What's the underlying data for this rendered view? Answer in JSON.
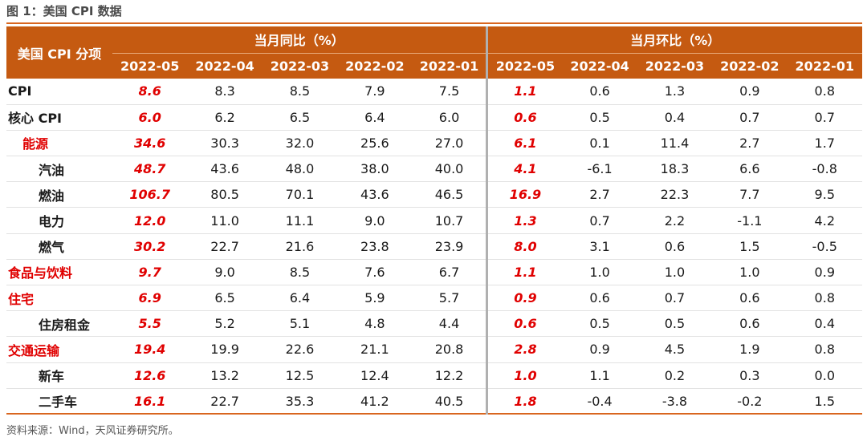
{
  "title": "图 1：美国 CPI 数据",
  "source": "资料来源：Wind，天风证券研究所。",
  "header": {
    "row_label": "美国 CPI 分项",
    "yoy_group": "当月同比（%）",
    "mom_group": "当月环比（%）",
    "months": [
      "2022-05",
      "2022-04",
      "2022-03",
      "2022-02",
      "2022-01"
    ]
  },
  "rows": [
    {
      "label": "CPI",
      "level": 0,
      "red_label": false,
      "yoy": [
        "8.6",
        "8.3",
        "8.5",
        "7.9",
        "7.5"
      ],
      "mom": [
        "1.1",
        "0.6",
        "1.3",
        "0.9",
        "0.8"
      ]
    },
    {
      "label": "核心 CPI",
      "level": 0,
      "red_label": false,
      "yoy": [
        "6.0",
        "6.2",
        "6.5",
        "6.4",
        "6.0"
      ],
      "mom": [
        "0.6",
        "0.5",
        "0.4",
        "0.7",
        "0.7"
      ]
    },
    {
      "label": "能源",
      "level": 1,
      "red_label": true,
      "yoy": [
        "34.6",
        "30.3",
        "32.0",
        "25.6",
        "27.0"
      ],
      "mom": [
        "6.1",
        "0.1",
        "11.4",
        "2.7",
        "1.7"
      ]
    },
    {
      "label": "汽油",
      "level": 2,
      "red_label": false,
      "yoy": [
        "48.7",
        "43.6",
        "48.0",
        "38.0",
        "40.0"
      ],
      "mom": [
        "4.1",
        "-6.1",
        "18.3",
        "6.6",
        "-0.8"
      ]
    },
    {
      "label": "燃油",
      "level": 2,
      "red_label": false,
      "yoy": [
        "106.7",
        "80.5",
        "70.1",
        "43.6",
        "46.5"
      ],
      "mom": [
        "16.9",
        "2.7",
        "22.3",
        "7.7",
        "9.5"
      ]
    },
    {
      "label": "电力",
      "level": 2,
      "red_label": false,
      "yoy": [
        "12.0",
        "11.0",
        "11.1",
        "9.0",
        "10.7"
      ],
      "mom": [
        "1.3",
        "0.7",
        "2.2",
        "-1.1",
        "4.2"
      ]
    },
    {
      "label": "燃气",
      "level": 2,
      "red_label": false,
      "yoy": [
        "30.2",
        "22.7",
        "21.6",
        "23.8",
        "23.9"
      ],
      "mom": [
        "8.0",
        "3.1",
        "0.6",
        "1.5",
        "-0.5"
      ]
    },
    {
      "label": "食品与饮料",
      "level": 0,
      "red_label": true,
      "yoy": [
        "9.7",
        "9.0",
        "8.5",
        "7.6",
        "6.7"
      ],
      "mom": [
        "1.1",
        "1.0",
        "1.0",
        "1.0",
        "0.9"
      ]
    },
    {
      "label": "住宅",
      "level": 0,
      "red_label": true,
      "yoy": [
        "6.9",
        "6.5",
        "6.4",
        "5.9",
        "5.7"
      ],
      "mom": [
        "0.9",
        "0.6",
        "0.7",
        "0.6",
        "0.8"
      ]
    },
    {
      "label": "住房租金",
      "level": 2,
      "red_label": false,
      "yoy": [
        "5.5",
        "5.2",
        "5.1",
        "4.8",
        "4.4"
      ],
      "mom": [
        "0.6",
        "0.5",
        "0.5",
        "0.6",
        "0.4"
      ]
    },
    {
      "label": "交通运输",
      "level": 0,
      "red_label": true,
      "yoy": [
        "19.4",
        "19.9",
        "22.6",
        "21.1",
        "20.8"
      ],
      "mom": [
        "2.8",
        "0.9",
        "4.5",
        "1.9",
        "0.8"
      ]
    },
    {
      "label": "新车",
      "level": 2,
      "red_label": false,
      "yoy": [
        "12.6",
        "13.2",
        "12.5",
        "12.4",
        "12.2"
      ],
      "mom": [
        "1.0",
        "1.1",
        "0.2",
        "0.3",
        "0.0"
      ]
    },
    {
      "label": "二手车",
      "level": 2,
      "red_label": false,
      "yoy": [
        "16.1",
        "22.7",
        "35.3",
        "41.2",
        "40.5"
      ],
      "mom": [
        "1.8",
        "-0.4",
        "-3.8",
        "-0.2",
        "1.5"
      ]
    }
  ],
  "colors": {
    "header_bg": "#c55a11",
    "highlight": "#e00000",
    "rule": "#d9661f"
  }
}
